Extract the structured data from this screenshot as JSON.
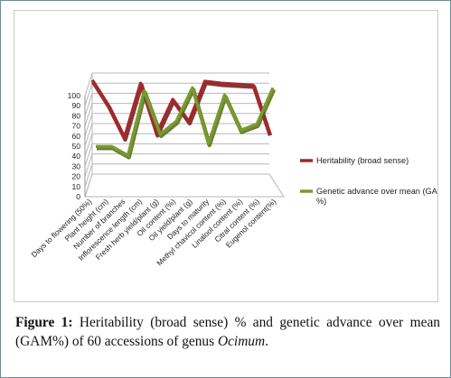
{
  "chart_data": {
    "type": "line",
    "categories": [
      "Days to flowering (50%)",
      "Plant height (cm)",
      "Number of branches",
      "Inflorescence length (cm)",
      "Fresh herb yield/plant (g)",
      "Oil content (%)",
      "Oil yield/plant (g)",
      "Days to maturity",
      "Methyl chavicol content (%)",
      "Linalool content (%)",
      "Citral content (%)",
      "Eugenol content(%)"
    ],
    "series": [
      {
        "name": "Heritability (broad sense)",
        "color": "#a3282c",
        "values": [
          93,
          68,
          36,
          90,
          40,
          74,
          52,
          92,
          90,
          89,
          88,
          40
        ]
      },
      {
        "name": "Genetic advance over mean (GAM %)",
        "color": "#7a9a2c",
        "values": [
          31,
          31,
          22,
          86,
          43,
          56,
          89,
          34,
          82,
          47,
          53,
          89
        ]
      }
    ],
    "ylim": [
      0,
      100
    ],
    "yticks": [
      "0",
      "10",
      "20",
      "30",
      "40",
      "50",
      "60",
      "70",
      "80",
      "90",
      "100"
    ],
    "legend_position": "right"
  },
  "caption": {
    "figure_label": "Figure 1:",
    "text": " Heritability (broad sense) % and genetic advance over mean (GAM%) of 60 accessions of genus ",
    "genus": "Ocimum",
    "end": "."
  }
}
